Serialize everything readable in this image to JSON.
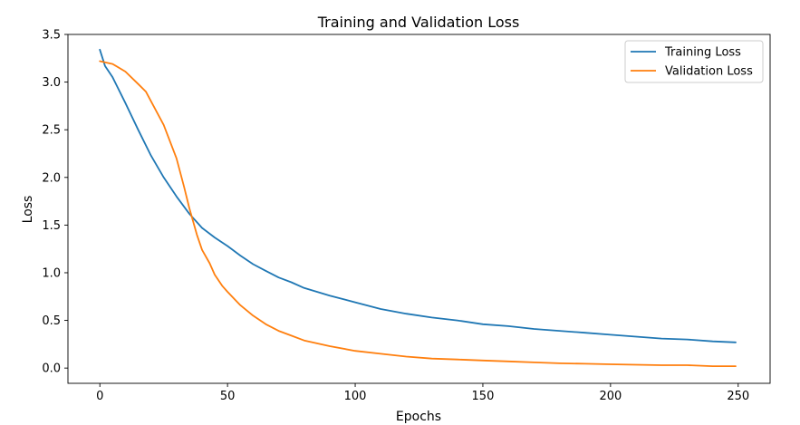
{
  "chart_data": {
    "type": "line",
    "title": "Training and Validation Loss",
    "xlabel": "Epochs",
    "ylabel": "Loss",
    "xlim": [
      -12.5,
      262.5
    ],
    "ylim": [
      -0.16,
      3.5
    ],
    "xticks": [
      0,
      50,
      100,
      150,
      200,
      250
    ],
    "yticks": [
      0.0,
      0.5,
      1.0,
      1.5,
      2.0,
      2.5,
      3.0,
      3.5
    ],
    "xtick_labels": [
      "0",
      "50",
      "100",
      "150",
      "200",
      "250"
    ],
    "ytick_labels": [
      "0.0",
      "0.5",
      "1.0",
      "1.5",
      "2.0",
      "2.5",
      "3.0",
      "3.5"
    ],
    "grid": false,
    "legend_position": "top-right",
    "series": [
      {
        "name": "Training Loss",
        "color": "#1f77b4",
        "x": [
          0,
          2,
          5,
          10,
          15,
          20,
          25,
          30,
          35,
          40,
          45,
          50,
          55,
          60,
          65,
          70,
          75,
          80,
          90,
          100,
          110,
          120,
          130,
          140,
          150,
          160,
          170,
          180,
          190,
          200,
          210,
          220,
          230,
          240,
          249
        ],
        "y": [
          3.34,
          3.17,
          3.05,
          2.78,
          2.5,
          2.23,
          2.0,
          1.8,
          1.62,
          1.47,
          1.37,
          1.28,
          1.18,
          1.09,
          1.02,
          0.95,
          0.9,
          0.84,
          0.76,
          0.69,
          0.62,
          0.57,
          0.53,
          0.5,
          0.46,
          0.44,
          0.41,
          0.39,
          0.37,
          0.35,
          0.33,
          0.31,
          0.3,
          0.28,
          0.27
        ]
      },
      {
        "name": "Validation Loss",
        "color": "#ff7f0e",
        "x": [
          0,
          5,
          10,
          15,
          18,
          20,
          25,
          30,
          33,
          35,
          38,
          40,
          43,
          45,
          48,
          50,
          55,
          60,
          65,
          70,
          75,
          80,
          90,
          100,
          110,
          120,
          130,
          140,
          150,
          160,
          170,
          180,
          190,
          200,
          210,
          220,
          230,
          240,
          249
        ],
        "y": [
          3.22,
          3.19,
          3.11,
          2.98,
          2.9,
          2.8,
          2.55,
          2.2,
          1.9,
          1.68,
          1.4,
          1.24,
          1.1,
          0.98,
          0.86,
          0.8,
          0.66,
          0.55,
          0.46,
          0.39,
          0.34,
          0.29,
          0.23,
          0.18,
          0.15,
          0.12,
          0.1,
          0.09,
          0.08,
          0.07,
          0.06,
          0.05,
          0.045,
          0.04,
          0.035,
          0.03,
          0.03,
          0.02,
          0.02
        ]
      }
    ]
  }
}
